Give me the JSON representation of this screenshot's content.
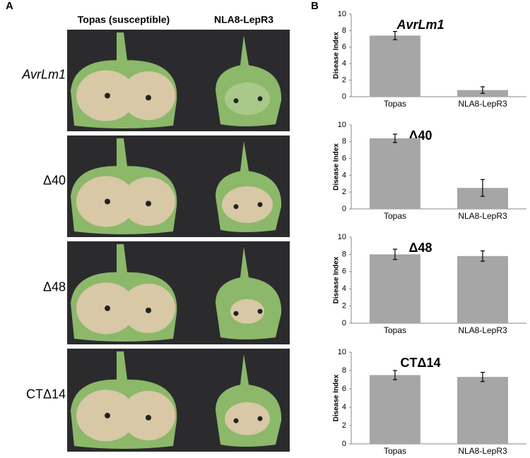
{
  "panel_a": {
    "label": "A",
    "columns": [
      "Topas (susceptible)",
      "NLA8-LepR3"
    ],
    "rows": [
      "AvrLm1",
      "Δ40",
      "Δ48",
      "CTΔ14"
    ]
  },
  "panel_b": {
    "label": "B"
  },
  "chart_data": [
    {
      "type": "bar",
      "title": "AvrLm1",
      "title_italic": true,
      "ylabel": "Disease Index",
      "categories": [
        "Topas",
        "NLA8-LepR3"
      ],
      "values": [
        7.4,
        0.8
      ],
      "errors": [
        0.5,
        0.4
      ],
      "color": "#a6a6a6",
      "ylim": [
        0,
        10
      ],
      "yticks": [
        0,
        2,
        4,
        6,
        8,
        10
      ]
    },
    {
      "type": "bar",
      "title": "Δ40",
      "title_italic": false,
      "ylabel": "Disease Index",
      "categories": [
        "Topas",
        "NLA8-LepR3"
      ],
      "values": [
        8.4,
        2.5
      ],
      "errors": [
        0.5,
        1.0
      ],
      "color": "#a6a6a6",
      "ylim": [
        0,
        10
      ],
      "yticks": [
        0,
        2,
        4,
        6,
        8,
        10
      ]
    },
    {
      "type": "bar",
      "title": "Δ48",
      "title_italic": false,
      "ylabel": "Disease Index",
      "categories": [
        "Topas",
        "NLA8-LepR3"
      ],
      "values": [
        8.0,
        7.8
      ],
      "errors": [
        0.6,
        0.6
      ],
      "color": "#a6a6a6",
      "ylim": [
        0,
        10
      ],
      "yticks": [
        0,
        2,
        4,
        6,
        8,
        10
      ]
    },
    {
      "type": "bar",
      "title": "CTΔ14",
      "title_italic": false,
      "ylabel": "Disease Index",
      "categories": [
        "Topas",
        "NLA8-LepR3"
      ],
      "values": [
        7.5,
        7.3
      ],
      "errors": [
        0.5,
        0.5
      ],
      "color": "#a6a6a6",
      "ylim": [
        0,
        10
      ],
      "yticks": [
        0,
        2,
        4,
        6,
        8,
        10
      ]
    }
  ]
}
